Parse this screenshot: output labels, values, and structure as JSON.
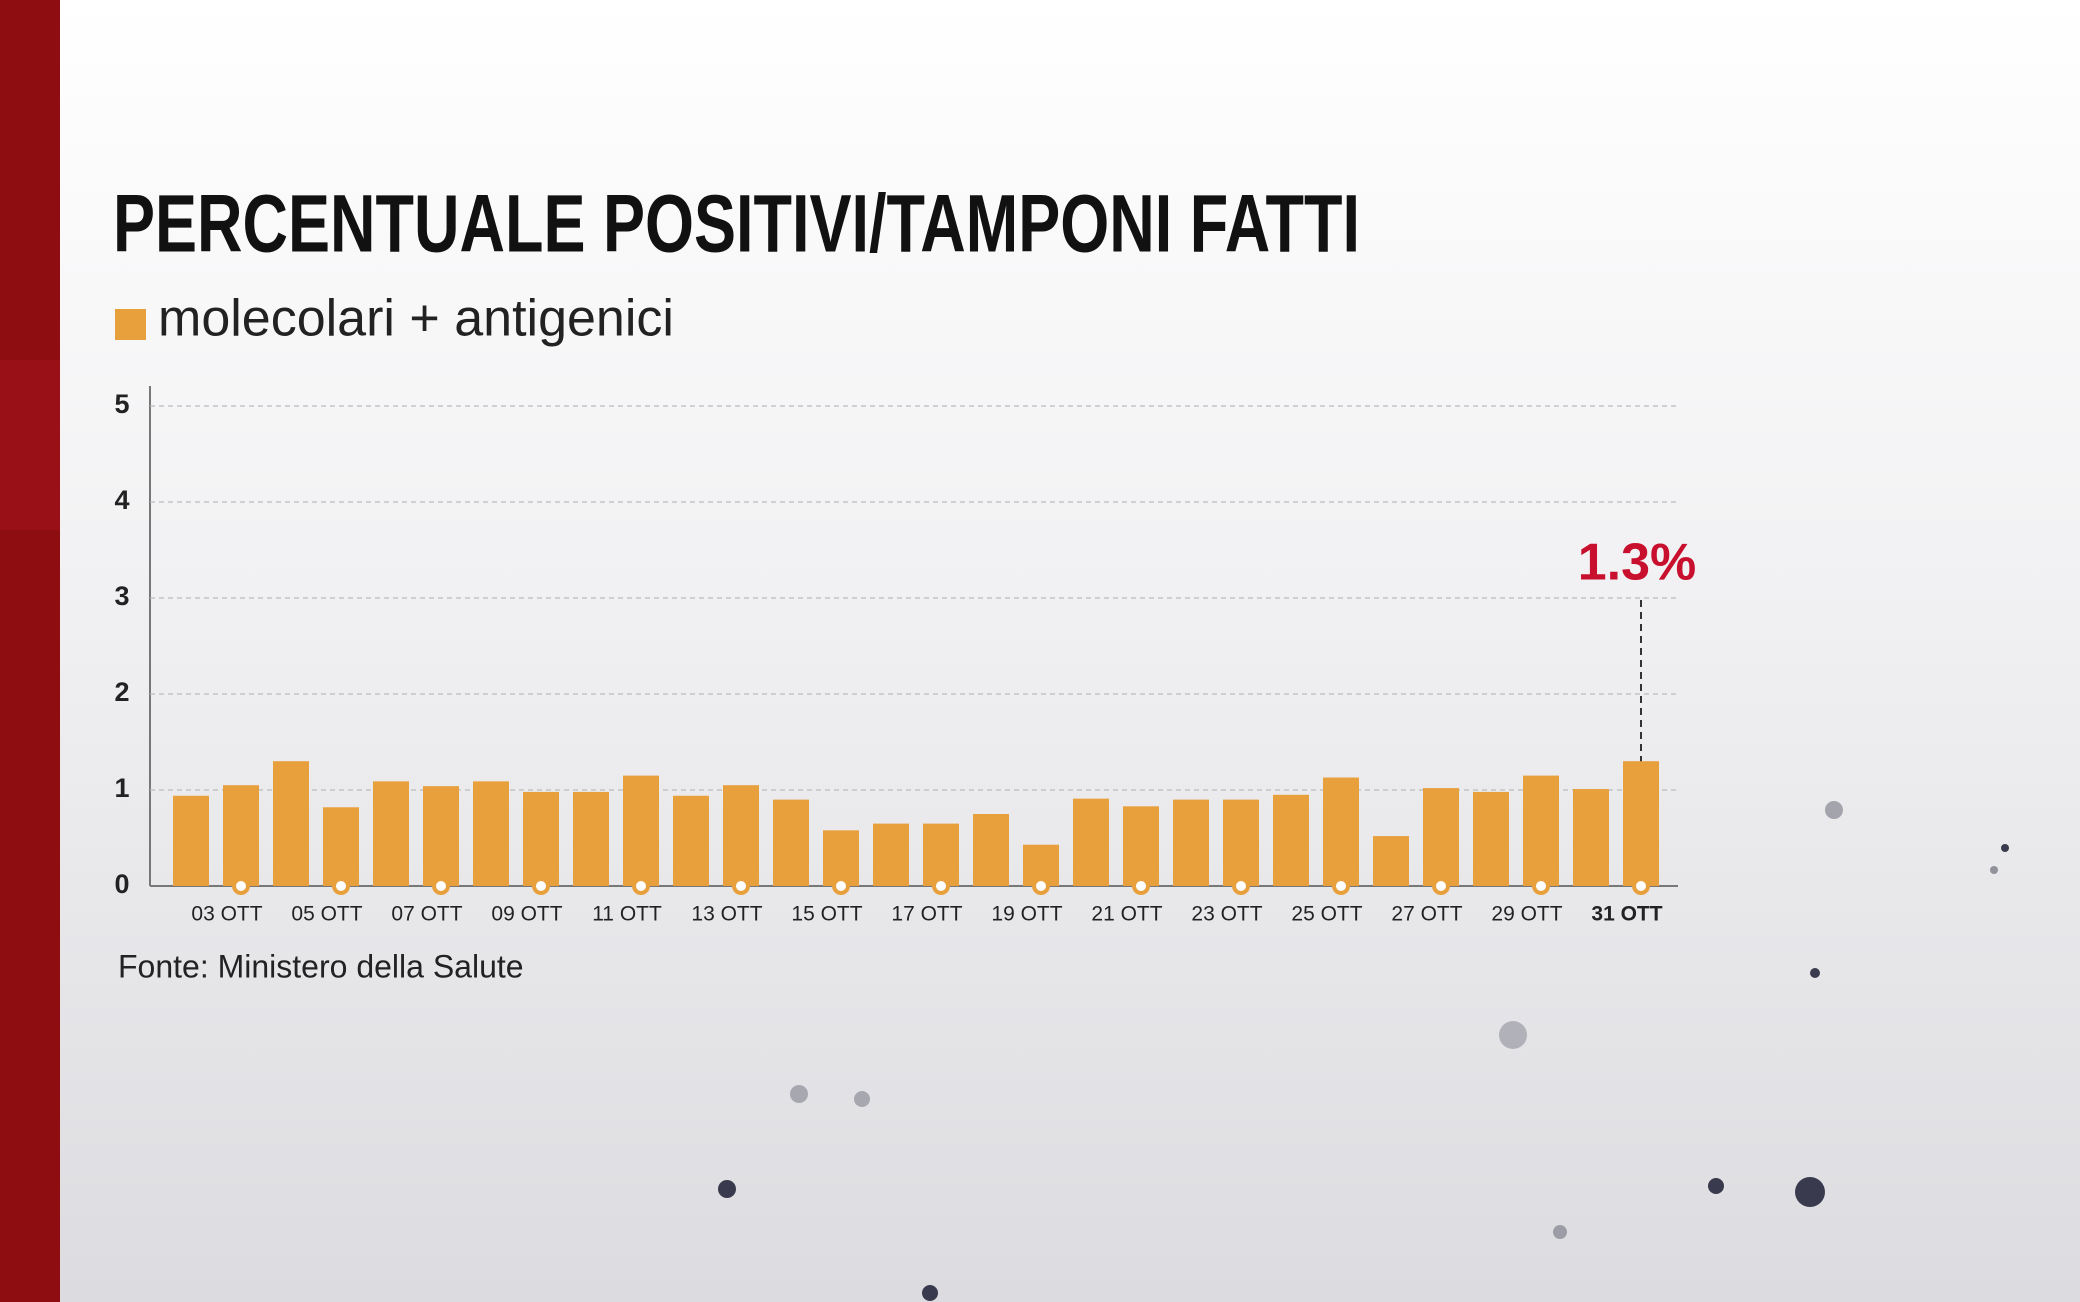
{
  "chart_data": {
    "type": "bar",
    "title": "PERCENTUALE POSITIVI/TAMPONI FATTI",
    "source": "Fonte: Ministero della Salute",
    "categories": [
      null,
      "03 OTT",
      null,
      "05 OTT",
      null,
      "07 OTT",
      null,
      "09 OTT",
      null,
      "11 OTT",
      null,
      "13 OTT",
      null,
      "15 OTT",
      null,
      "17 OTT",
      null,
      "19 OTT",
      null,
      "21 OTT",
      null,
      "23 OTT",
      null,
      "25 OTT",
      null,
      "27 OTT",
      null,
      "29 OTT",
      null,
      "31 OTT"
    ],
    "series": [
      {
        "name": "molecolari + antigenici",
        "color": "#e8a03c",
        "values": [
          0.94,
          1.05,
          1.3,
          0.82,
          1.09,
          1.04,
          1.09,
          0.98,
          0.98,
          1.15,
          0.94,
          1.05,
          0.9,
          0.58,
          0.65,
          0.65,
          0.75,
          0.43,
          0.91,
          0.83,
          0.9,
          0.9,
          0.95,
          1.13,
          0.52,
          1.02,
          0.98,
          1.15,
          1.01,
          1.3
        ],
        "value_labels": [
          null,
          null,
          null,
          null,
          null,
          null,
          null,
          null,
          null,
          null,
          null,
          null,
          null,
          null,
          null,
          null,
          null,
          null,
          null,
          null,
          null,
          null,
          null,
          null,
          null,
          null,
          null,
          null,
          null,
          "1.3%"
        ]
      }
    ],
    "ylim": [
      0,
      5
    ],
    "yticks": [
      0,
      1,
      2,
      3,
      4,
      5
    ],
    "grid": true,
    "annotation_color": "#c8102e"
  }
}
